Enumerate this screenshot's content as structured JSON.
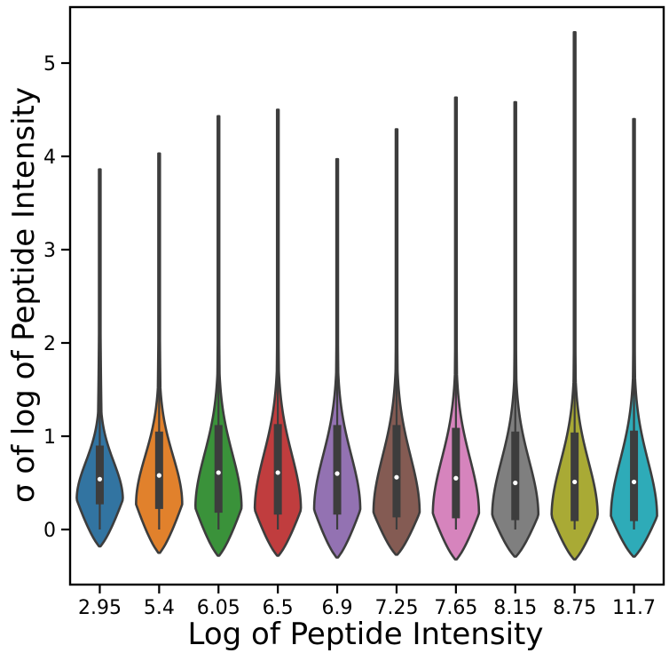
{
  "chart_data": {
    "type": "violin",
    "title": "",
    "xlabel": "Log of Peptide Intensity",
    "ylabel": "σ of log of Peptide Intensity",
    "ylim": [
      -0.6,
      5.6
    ],
    "yticks": [
      0,
      1,
      2,
      3,
      4,
      5
    ],
    "ytick_labels": [
      "0",
      "1",
      "2",
      "3",
      "4",
      "5"
    ],
    "grid": false,
    "legend": "none",
    "categories": [
      "2.95",
      "5.4",
      "6.05",
      "6.5",
      "6.9",
      "7.25",
      "7.65",
      "8.15",
      "8.75",
      "11.7"
    ],
    "colors": [
      "#3274a1",
      "#e1812c",
      "#3a923a",
      "#c03d3e",
      "#9372b2",
      "#845b53",
      "#d684bd",
      "#7f7f7f",
      "#a9aa35",
      "#2eabb8"
    ],
    "violins": [
      {
        "min": -0.18,
        "q1": 0.27,
        "median": 0.54,
        "q3": 0.9,
        "max": 3.86
      },
      {
        "min": -0.25,
        "q1": 0.22,
        "median": 0.58,
        "q3": 1.05,
        "max": 4.03
      },
      {
        "min": -0.28,
        "q1": 0.18,
        "median": 0.61,
        "q3": 1.12,
        "max": 4.43
      },
      {
        "min": -0.28,
        "q1": 0.16,
        "median": 0.61,
        "q3": 1.13,
        "max": 4.5
      },
      {
        "min": -0.3,
        "q1": 0.16,
        "median": 0.6,
        "q3": 1.12,
        "max": 3.97
      },
      {
        "min": -0.27,
        "q1": 0.13,
        "median": 0.56,
        "q3": 1.12,
        "max": 4.29
      },
      {
        "min": -0.32,
        "q1": 0.12,
        "median": 0.55,
        "q3": 1.09,
        "max": 4.63
      },
      {
        "min": -0.29,
        "q1": 0.1,
        "median": 0.5,
        "q3": 1.05,
        "max": 4.58
      },
      {
        "min": -0.32,
        "q1": 0.09,
        "median": 0.51,
        "q3": 1.04,
        "max": 5.33
      },
      {
        "min": -0.29,
        "q1": 0.09,
        "median": 0.51,
        "q3": 1.06,
        "max": 4.4
      }
    ]
  }
}
